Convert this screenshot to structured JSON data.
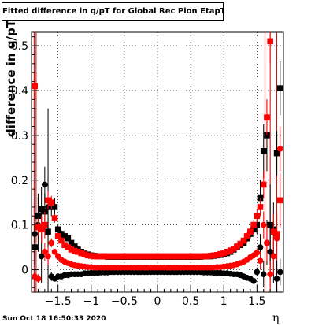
{
  "title": "Fitted difference in q/pT for Global Rec Pion EtapT",
  "datestamp": "Sun Oct 18 16:50:33 2020",
  "chart_data": {
    "type": "scatter",
    "title": "Fitted difference in q/pT for Global Rec Pion EtapT",
    "xlabel": "η",
    "ylabel": "difference in q/pT",
    "xlim": [
      -1.9,
      1.9
    ],
    "ylim": [
      -0.05,
      0.53
    ],
    "xticks": [
      -1.5,
      -1,
      -0.5,
      0,
      0.5,
      1,
      1.5
    ],
    "xtick_labels": [
      "−1.5",
      "−1",
      "−0.5",
      "0",
      "0.5",
      "1",
      "1.5"
    ],
    "yticks": [
      0,
      0.1,
      0.2,
      0.3,
      0.4,
      0.5
    ],
    "ytick_labels": [
      "0",
      "0.1",
      "0.2",
      "0.3",
      "0.4",
      "0.5"
    ],
    "grid": true,
    "vlines": [
      -1.86,
      -1.83,
      1.62,
      1.7,
      1.8
    ],
    "series": [
      {
        "marker": "circle",
        "color": "#000000",
        "x": [
          -1.85,
          -1.8,
          -1.75,
          -1.7,
          -1.65,
          -1.6,
          -1.55,
          -1.5,
          -1.45,
          -1.4,
          -1.35,
          -1.3,
          -1.25,
          -1.2,
          -1.15,
          -1.1,
          -1.05,
          -1.0,
          -0.95,
          -0.9,
          -0.85,
          -0.8,
          -0.75,
          -0.7,
          -0.65,
          -0.6,
          -0.55,
          -0.5,
          -0.45,
          -0.4,
          -0.35,
          -0.3,
          -0.25,
          -0.2,
          -0.15,
          -0.1,
          -0.05,
          0.0,
          0.05,
          0.1,
          0.15,
          0.2,
          0.25,
          0.3,
          0.35,
          0.4,
          0.45,
          0.5,
          0.55,
          0.6,
          0.65,
          0.7,
          0.75,
          0.8,
          0.85,
          0.9,
          0.95,
          1.0,
          1.05,
          1.1,
          1.15,
          1.2,
          1.25,
          1.3,
          1.35,
          1.4,
          1.45,
          1.5,
          1.55,
          1.6,
          1.65,
          1.7,
          1.75,
          1.8,
          1.85
        ],
        "y": [
          0.08,
          0.1,
          0.03,
          0.19,
          0.14,
          -0.015,
          -0.02,
          -0.015,
          -0.015,
          -0.012,
          -0.012,
          -0.01,
          -0.01,
          -0.01,
          -0.01,
          -0.008,
          -0.008,
          -0.007,
          -0.007,
          -0.007,
          -0.006,
          -0.006,
          -0.006,
          -0.005,
          -0.005,
          -0.005,
          -0.005,
          -0.005,
          -0.005,
          -0.005,
          -0.005,
          -0.005,
          -0.005,
          -0.005,
          -0.005,
          -0.005,
          -0.005,
          -0.005,
          -0.005,
          -0.005,
          -0.005,
          -0.005,
          -0.005,
          -0.005,
          -0.005,
          -0.005,
          -0.005,
          -0.005,
          -0.005,
          -0.005,
          -0.005,
          -0.006,
          -0.006,
          -0.006,
          -0.007,
          -0.007,
          -0.007,
          -0.008,
          -0.008,
          -0.009,
          -0.01,
          -0.01,
          -0.012,
          -0.015,
          -0.018,
          -0.02,
          -0.025,
          -0.005,
          0.05,
          -0.01,
          0.06,
          0.04,
          0.03,
          -0.02,
          -0.005
        ],
        "err": [
          0.02,
          0.06,
          0.06,
          0.04,
          0.22,
          0.01,
          0.005,
          0.005,
          0.004,
          0.004,
          0.003,
          0.003,
          0.003,
          0.003,
          0.003,
          0.003,
          0.003,
          0.003,
          0.003,
          0.003,
          0.003,
          0.003,
          0.003,
          0.003,
          0.003,
          0.003,
          0.003,
          0.003,
          0.003,
          0.003,
          0.003,
          0.003,
          0.003,
          0.003,
          0.003,
          0.003,
          0.003,
          0.003,
          0.003,
          0.003,
          0.003,
          0.003,
          0.003,
          0.003,
          0.003,
          0.003,
          0.003,
          0.003,
          0.003,
          0.003,
          0.003,
          0.003,
          0.003,
          0.003,
          0.003,
          0.003,
          0.003,
          0.003,
          0.003,
          0.003,
          0.003,
          0.003,
          0.003,
          0.004,
          0.004,
          0.005,
          0.006,
          0.01,
          0.03,
          0.03,
          0.05,
          0.06,
          0.06,
          0.04,
          0.03
        ]
      },
      {
        "marker": "square",
        "color": "#000000",
        "x": [
          -1.85,
          -1.8,
          -1.75,
          -1.7,
          -1.65,
          -1.6,
          -1.55,
          -1.5,
          -1.45,
          -1.4,
          -1.35,
          -1.3,
          -1.25,
          -1.2,
          -1.15,
          -1.1,
          -1.05,
          -1.0,
          -0.95,
          -0.9,
          -0.85,
          -0.8,
          -0.75,
          -0.7,
          -0.65,
          -0.6,
          -0.55,
          -0.5,
          -0.45,
          -0.4,
          -0.35,
          -0.3,
          -0.25,
          -0.2,
          -0.15,
          -0.1,
          -0.05,
          0.0,
          0.05,
          0.1,
          0.15,
          0.2,
          0.25,
          0.3,
          0.35,
          0.4,
          0.45,
          0.5,
          0.55,
          0.6,
          0.65,
          0.7,
          0.75,
          0.8,
          0.85,
          0.9,
          0.95,
          1.0,
          1.05,
          1.1,
          1.15,
          1.2,
          1.25,
          1.3,
          1.35,
          1.4,
          1.45,
          1.5,
          1.55,
          1.6,
          1.65,
          1.7,
          1.75,
          1.8,
          1.85
        ],
        "y": [
          0.05,
          0.12,
          0.135,
          0.13,
          0.085,
          0.14,
          0.14,
          0.09,
          0.08,
          0.075,
          0.07,
          0.06,
          0.052,
          0.045,
          0.04,
          0.036,
          0.034,
          0.032,
          0.031,
          0.03,
          0.03,
          0.03,
          0.029,
          0.029,
          0.029,
          0.029,
          0.029,
          0.029,
          0.029,
          0.029,
          0.029,
          0.029,
          0.029,
          0.029,
          0.029,
          0.029,
          0.029,
          0.029,
          0.029,
          0.029,
          0.029,
          0.029,
          0.029,
          0.029,
          0.029,
          0.029,
          0.029,
          0.029,
          0.029,
          0.029,
          0.029,
          0.03,
          0.03,
          0.03,
          0.031,
          0.032,
          0.033,
          0.035,
          0.037,
          0.04,
          0.045,
          0.05,
          0.055,
          0.06,
          0.07,
          0.08,
          0.09,
          0.1,
          0.16,
          0.265,
          0.3,
          0.1,
          0.09,
          0.26,
          0.405
        ],
        "err": [
          0.04,
          0.05,
          0.05,
          0.04,
          0.03,
          0.02,
          0.02,
          0.01,
          0.008,
          0.006,
          0.005,
          0.005,
          0.004,
          0.004,
          0.003,
          0.003,
          0.003,
          0.003,
          0.003,
          0.003,
          0.003,
          0.003,
          0.003,
          0.003,
          0.003,
          0.003,
          0.003,
          0.003,
          0.003,
          0.003,
          0.003,
          0.003,
          0.003,
          0.003,
          0.003,
          0.003,
          0.003,
          0.003,
          0.003,
          0.003,
          0.003,
          0.003,
          0.003,
          0.003,
          0.003,
          0.003,
          0.003,
          0.003,
          0.003,
          0.003,
          0.003,
          0.003,
          0.003,
          0.003,
          0.003,
          0.003,
          0.003,
          0.003,
          0.003,
          0.004,
          0.004,
          0.005,
          0.005,
          0.006,
          0.008,
          0.01,
          0.01,
          0.02,
          0.04,
          0.06,
          0.08,
          0.09,
          0.06,
          0.05,
          0.06
        ]
      },
      {
        "marker": "circle",
        "color": "#ff0000",
        "x": [
          -1.85,
          -1.8,
          -1.75,
          -1.7,
          -1.65,
          -1.6,
          -1.55,
          -1.5,
          -1.45,
          -1.4,
          -1.35,
          -1.3,
          -1.25,
          -1.2,
          -1.15,
          -1.1,
          -1.05,
          -1.0,
          -0.95,
          -0.9,
          -0.85,
          -0.8,
          -0.75,
          -0.7,
          -0.65,
          -0.6,
          -0.55,
          -0.5,
          -0.45,
          -0.4,
          -0.35,
          -0.3,
          -0.25,
          -0.2,
          -0.15,
          -0.1,
          -0.05,
          0.0,
          0.05,
          0.1,
          0.15,
          0.2,
          0.25,
          0.3,
          0.35,
          0.4,
          0.45,
          0.5,
          0.55,
          0.6,
          0.65,
          0.7,
          0.75,
          0.8,
          0.85,
          0.9,
          0.95,
          1.0,
          1.05,
          1.1,
          1.15,
          1.2,
          1.25,
          1.3,
          1.35,
          1.4,
          1.45,
          1.5,
          1.55,
          1.6,
          1.65,
          1.7,
          1.75,
          1.8,
          1.85
        ],
        "y": [
          -0.015,
          -0.02,
          0.09,
          0.04,
          0.03,
          0.06,
          0.04,
          0.03,
          0.022,
          0.018,
          0.015,
          0.012,
          0.01,
          0.009,
          0.008,
          0.007,
          0.006,
          0.006,
          0.005,
          0.005,
          0.005,
          0.005,
          0.005,
          0.005,
          0.005,
          0.005,
          0.005,
          0.005,
          0.005,
          0.005,
          0.005,
          0.005,
          0.005,
          0.005,
          0.005,
          0.005,
          0.005,
          0.005,
          0.005,
          0.005,
          0.005,
          0.005,
          0.005,
          0.005,
          0.005,
          0.005,
          0.005,
          0.005,
          0.005,
          0.005,
          0.005,
          0.005,
          0.005,
          0.005,
          0.005,
          0.006,
          0.006,
          0.007,
          0.008,
          0.009,
          0.01,
          0.012,
          0.015,
          0.018,
          0.022,
          0.028,
          0.032,
          0.038,
          0.02,
          0.1,
          0.06,
          -0.01,
          0.03,
          0.07,
          0.27
        ],
        "err": [
          0.01,
          0.01,
          0.03,
          0.02,
          0.02,
          0.01,
          0.006,
          0.005,
          0.004,
          0.003,
          0.003,
          0.003,
          0.003,
          0.003,
          0.003,
          0.003,
          0.003,
          0.003,
          0.003,
          0.003,
          0.003,
          0.003,
          0.003,
          0.003,
          0.003,
          0.003,
          0.003,
          0.003,
          0.003,
          0.003,
          0.003,
          0.003,
          0.003,
          0.003,
          0.003,
          0.003,
          0.003,
          0.003,
          0.003,
          0.003,
          0.003,
          0.003,
          0.003,
          0.003,
          0.003,
          0.003,
          0.003,
          0.003,
          0.003,
          0.003,
          0.003,
          0.003,
          0.003,
          0.003,
          0.003,
          0.003,
          0.003,
          0.003,
          0.003,
          0.003,
          0.003,
          0.003,
          0.003,
          0.004,
          0.005,
          0.006,
          0.008,
          0.01,
          0.02,
          0.03,
          0.04,
          0.03,
          0.04,
          0.05,
          0.05
        ]
      },
      {
        "marker": "square",
        "color": "#ff0000",
        "x": [
          -1.85,
          -1.8,
          -1.75,
          -1.7,
          -1.65,
          -1.6,
          -1.55,
          -1.5,
          -1.45,
          -1.4,
          -1.35,
          -1.3,
          -1.25,
          -1.2,
          -1.15,
          -1.1,
          -1.05,
          -1.0,
          -0.95,
          -0.9,
          -0.85,
          -0.8,
          -0.75,
          -0.7,
          -0.65,
          -0.6,
          -0.55,
          -0.5,
          -0.45,
          -0.4,
          -0.35,
          -0.3,
          -0.25,
          -0.2,
          -0.15,
          -0.1,
          -0.05,
          0.0,
          0.05,
          0.1,
          0.15,
          0.2,
          0.25,
          0.3,
          0.35,
          0.4,
          0.45,
          0.5,
          0.55,
          0.6,
          0.65,
          0.7,
          0.75,
          0.8,
          0.85,
          0.9,
          0.95,
          1.0,
          1.05,
          1.1,
          1.15,
          1.2,
          1.25,
          1.3,
          1.35,
          1.4,
          1.45,
          1.5,
          1.55,
          1.6,
          1.65,
          1.7,
          1.75,
          1.8,
          1.85
        ],
        "y": [
          0.41,
          0.095,
          0.09,
          0.1,
          0.155,
          0.15,
          0.115,
          0.075,
          0.065,
          0.055,
          0.05,
          0.045,
          0.042,
          0.04,
          0.037,
          0.034,
          0.032,
          0.031,
          0.03,
          0.03,
          0.03,
          0.03,
          0.03,
          0.03,
          0.03,
          0.03,
          0.03,
          0.03,
          0.03,
          0.03,
          0.03,
          0.03,
          0.03,
          0.03,
          0.03,
          0.03,
          0.03,
          0.03,
          0.03,
          0.03,
          0.03,
          0.03,
          0.03,
          0.03,
          0.03,
          0.03,
          0.03,
          0.03,
          0.03,
          0.03,
          0.03,
          0.03,
          0.03,
          0.031,
          0.032,
          0.033,
          0.035,
          0.037,
          0.04,
          0.043,
          0.047,
          0.052,
          0.058,
          0.065,
          0.075,
          0.085,
          0.1,
          0.12,
          0.14,
          0.19,
          0.34,
          0.51,
          0.085,
          0.08,
          0.155
        ],
        "err": [
          0.03,
          0.02,
          0.03,
          0.03,
          0.02,
          0.015,
          0.01,
          0.006,
          0.005,
          0.004,
          0.004,
          0.003,
          0.003,
          0.003,
          0.003,
          0.003,
          0.003,
          0.003,
          0.003,
          0.003,
          0.003,
          0.003,
          0.003,
          0.003,
          0.003,
          0.003,
          0.003,
          0.003,
          0.003,
          0.003,
          0.003,
          0.003,
          0.003,
          0.003,
          0.003,
          0.003,
          0.003,
          0.003,
          0.003,
          0.003,
          0.003,
          0.003,
          0.003,
          0.003,
          0.003,
          0.003,
          0.003,
          0.003,
          0.003,
          0.003,
          0.003,
          0.003,
          0.003,
          0.003,
          0.003,
          0.003,
          0.003,
          0.003,
          0.003,
          0.003,
          0.004,
          0.004,
          0.005,
          0.006,
          0.008,
          0.01,
          0.01,
          0.015,
          0.02,
          0.03,
          0.04,
          0.05,
          0.04,
          0.05,
          0.06
        ]
      }
    ]
  }
}
